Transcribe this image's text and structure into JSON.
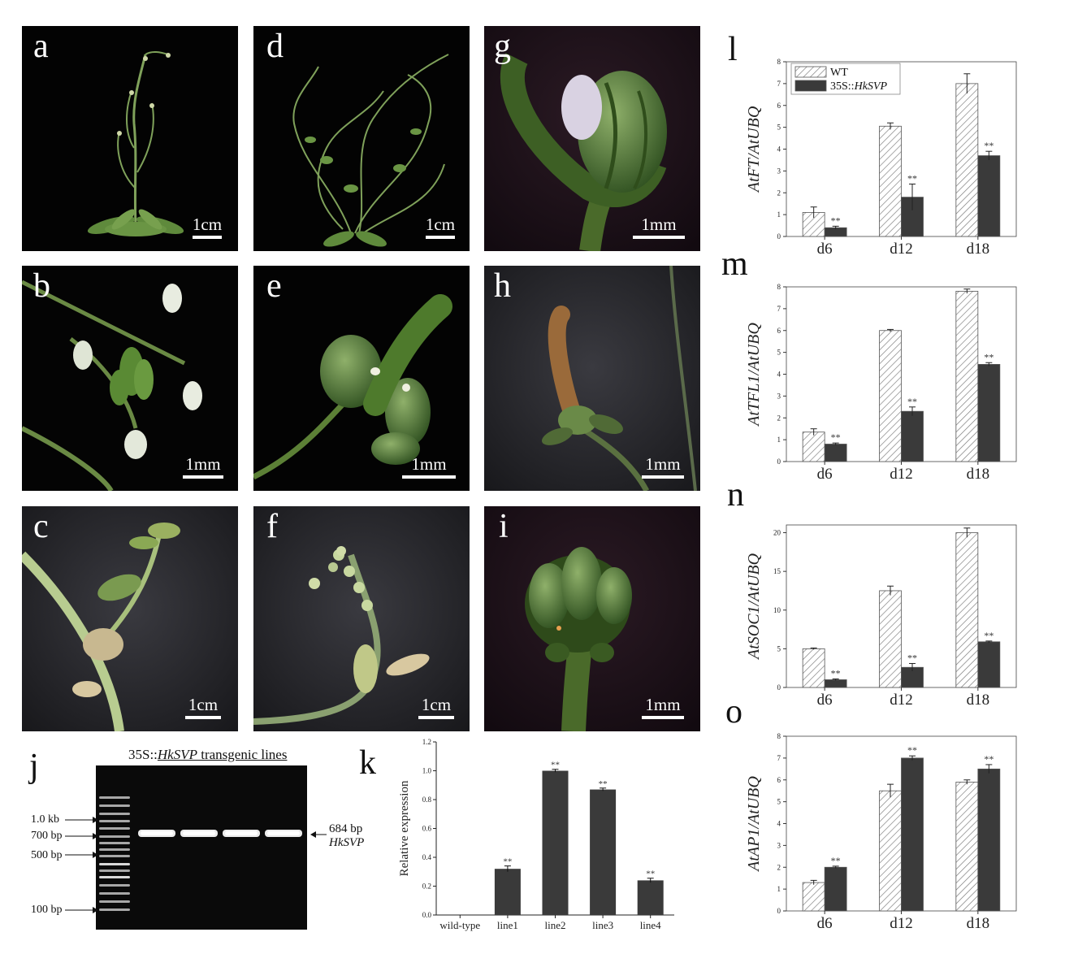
{
  "photo_panels": [
    {
      "id": "a",
      "label": "a",
      "scale": "1cm"
    },
    {
      "id": "b",
      "label": "b",
      "scale": "1mm"
    },
    {
      "id": "c",
      "label": "c",
      "scale": "1cm"
    },
    {
      "id": "d",
      "label": "d",
      "scale": "1cm"
    },
    {
      "id": "e",
      "label": "e",
      "scale": "1mm"
    },
    {
      "id": "f",
      "label": "f",
      "scale": "1cm"
    },
    {
      "id": "g",
      "label": "g",
      "scale": "1mm"
    },
    {
      "id": "h",
      "label": "h",
      "scale": "1mm"
    },
    {
      "id": "i",
      "label": "i",
      "scale": "1mm"
    }
  ],
  "gel": {
    "label": "j",
    "title_prefix": "35S::",
    "title_gene": "HkSVP",
    "title_suffix": " transgenic lines",
    "markers": [
      "1.0 kb",
      "700 bp",
      "500 bp",
      "100 bp"
    ],
    "band_size": "684 bp",
    "band_gene": "HkSVP",
    "lanes": 4
  },
  "chart_data": [
    {
      "id": "k",
      "label": "k",
      "type": "bar",
      "ylabel": "Relative expression",
      "categories": [
        "wild-type",
        "line1",
        "line2",
        "line3",
        "line4"
      ],
      "values": [
        0.0,
        0.32,
        1.0,
        0.87,
        0.24
      ],
      "errors": [
        0,
        0.02,
        0.01,
        0.01,
        0.015
      ],
      "significance": [
        "",
        "**",
        "**",
        "**",
        "**"
      ],
      "ylim": [
        0,
        1.2
      ],
      "yticks": [
        "0.0",
        "0.2",
        "0.4",
        "0.6",
        "0.8",
        "1.0",
        "1.2"
      ],
      "bar_color": "#3a3a3a"
    },
    {
      "id": "l",
      "label": "l",
      "type": "bar",
      "ylabel": "AtFT/AtUBQ",
      "categories": [
        "d6",
        "d12",
        "d18"
      ],
      "series": [
        {
          "name": "WT",
          "values": [
            1.1,
            5.05,
            7.0
          ],
          "errors": [
            0.25,
            0.15,
            0.45
          ],
          "sig": [
            "",
            "",
            ""
          ]
        },
        {
          "name": "35S::HkSVP",
          "values": [
            0.4,
            1.8,
            3.7
          ],
          "errors": [
            0.07,
            0.6,
            0.2
          ],
          "sig": [
            "**",
            "**",
            "**"
          ]
        }
      ],
      "ylim": [
        0,
        8
      ],
      "yticks": [
        "0",
        "1",
        "2",
        "3",
        "4",
        "5",
        "6",
        "7",
        "8"
      ],
      "legend": {
        "position": "top-left",
        "wt": "WT",
        "tg_prefix": "35S::",
        "tg_gene": "HkSVP"
      }
    },
    {
      "id": "m",
      "label": "m",
      "type": "bar",
      "ylabel": "AtTFL1/AtUBQ",
      "categories": [
        "d6",
        "d12",
        "d18"
      ],
      "series": [
        {
          "name": "WT",
          "values": [
            1.35,
            6.0,
            7.8
          ],
          "errors": [
            0.15,
            0.05,
            0.1
          ],
          "sig": [
            "",
            "",
            ""
          ]
        },
        {
          "name": "35S::HkSVP",
          "values": [
            0.8,
            2.3,
            4.45
          ],
          "errors": [
            0.05,
            0.2,
            0.08
          ],
          "sig": [
            "**",
            "**",
            "**"
          ]
        }
      ],
      "ylim": [
        0,
        8
      ],
      "yticks": [
        "0",
        "1",
        "2",
        "3",
        "4",
        "5",
        "6",
        "7",
        "8"
      ]
    },
    {
      "id": "n",
      "label": "n",
      "type": "bar",
      "ylabel": "AtSOC1/AtUBQ",
      "categories": [
        "d6",
        "d12",
        "d18"
      ],
      "series": [
        {
          "name": "WT",
          "values": [
            5.0,
            12.5,
            20.0
          ],
          "errors": [
            0.1,
            0.6,
            0.6
          ],
          "sig": [
            "",
            "",
            ""
          ]
        },
        {
          "name": "35S::HkSVP",
          "values": [
            1.0,
            2.6,
            5.9
          ],
          "errors": [
            0.1,
            0.5,
            0.1
          ],
          "sig": [
            "**",
            "**",
            "**"
          ]
        }
      ],
      "ylim": [
        0,
        21
      ],
      "yticks": [
        "0",
        "5",
        "10",
        "15",
        "20"
      ]
    },
    {
      "id": "o",
      "label": "o",
      "type": "bar",
      "ylabel": "AtAP1/AtUBQ",
      "categories": [
        "d6",
        "d12",
        "d18"
      ],
      "series": [
        {
          "name": "WT",
          "values": [
            1.3,
            5.5,
            5.9
          ],
          "errors": [
            0.1,
            0.3,
            0.1
          ],
          "sig": [
            "",
            "",
            ""
          ]
        },
        {
          "name": "35S::HkSVP",
          "values": [
            2.0,
            7.0,
            6.5
          ],
          "errors": [
            0.05,
            0.1,
            0.2
          ],
          "sig": [
            "**",
            "**",
            "**"
          ]
        }
      ],
      "ylim": [
        0,
        8
      ],
      "yticks": [
        "0",
        "1",
        "2",
        "3",
        "4",
        "5",
        "6",
        "7",
        "8"
      ]
    }
  ]
}
